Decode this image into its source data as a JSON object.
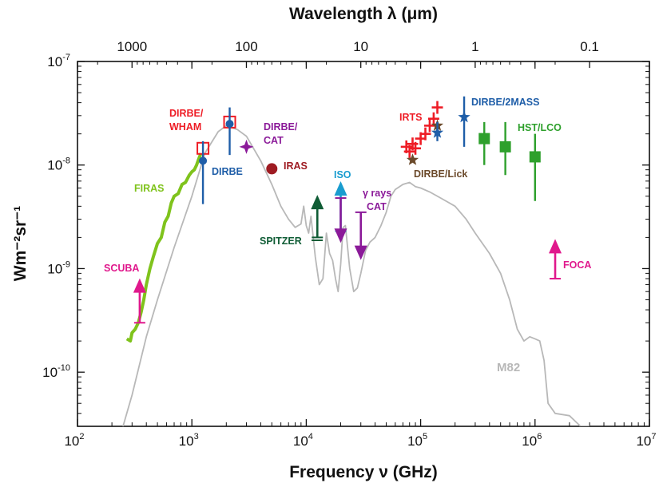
{
  "chart_data": {
    "type": "scatter",
    "title": "Wavelength λ (μm)",
    "xlabel": "Frequency ν (GHz)",
    "ylabel": "Wm⁻²sr⁻¹",
    "x_scale": "log",
    "y_scale": "log",
    "xlim": [
      100,
      10000000
    ],
    "ylim": [
      3e-11,
      1e-07
    ],
    "x_ticks": [
      {
        "label": "10",
        "exp": "2"
      },
      {
        "label": "10",
        "exp": "3"
      },
      {
        "label": "10",
        "exp": "4"
      },
      {
        "label": "10",
        "exp": "5"
      },
      {
        "label": "10",
        "exp": "6"
      },
      {
        "label": "10",
        "exp": "7"
      }
    ],
    "y_ticks": [
      {
        "label": "10",
        "exp": "-10"
      },
      {
        "label": "10",
        "exp": "-9"
      },
      {
        "label": "10",
        "exp": "-8"
      },
      {
        "label": "10",
        "exp": "-7"
      }
    ],
    "top_axis_ticks": [
      "1000",
      "100",
      "10",
      "1",
      "0.1"
    ],
    "series": [
      {
        "name": "FIRAS",
        "color": "#7fc31c",
        "kind": "line",
        "x": [
          270,
          290,
          300,
          320,
          340,
          360,
          380,
          400,
          430,
          460,
          500,
          540,
          580,
          620,
          660,
          700,
          760,
          820,
          880,
          950,
          1000,
          1050,
          1100,
          1150,
          1200
        ],
        "y": [
          2.1e-10,
          2e-10,
          2.4e-10,
          2.6e-10,
          3e-10,
          3.8e-10,
          5e-10,
          7e-10,
          1e-09,
          1.3e-09,
          1.75e-09,
          2e-09,
          2.8e-09,
          3.2e-09,
          4.3e-09,
          5e-09,
          5.3e-09,
          6.5e-09,
          6.8e-09,
          8e-09,
          8.6e-09,
          9e-09,
          1e-08,
          1.15e-08,
          1.3e-08
        ]
      },
      {
        "name": "M82",
        "color": "#b8b8b8",
        "kind": "line",
        "x": [
          250,
          300,
          400,
          500,
          700,
          1000,
          1300,
          1700,
          2000,
          2500,
          3000,
          4000,
          5000,
          6000,
          7000,
          8000,
          9000,
          9500,
          10000,
          10500,
          11000,
          12000,
          13000,
          14000,
          15000,
          16000,
          17000,
          18000,
          19000,
          20000,
          21000,
          22000,
          24000,
          26000,
          28000,
          30000,
          33000,
          36000,
          40000,
          45000,
          50000,
          55000,
          60000,
          70000,
          80000,
          90000,
          100000,
          120000,
          150000,
          200000,
          250000,
          300000,
          400000,
          500000,
          600000,
          700000,
          800000,
          900000,
          1000000,
          1100000,
          1200000,
          1300000,
          1500000,
          2000000,
          2500000,
          3000000
        ],
        "y": [
          3e-11,
          6e-11,
          2.2e-10,
          5e-10,
          1.6e-09,
          5e-09,
          1.3e-08,
          2.1e-08,
          2.4e-08,
          2.2e-08,
          1.9e-08,
          1.1e-08,
          6.5e-09,
          4e-09,
          3e-09,
          2.5e-09,
          2.7e-09,
          4e-09,
          2.6e-09,
          2.2e-09,
          3.2e-09,
          1.3e-09,
          7e-10,
          8e-10,
          2.2e-09,
          1.4e-09,
          1.2e-09,
          8e-10,
          6e-10,
          1.1e-09,
          2.5e-09,
          2.6e-09,
          1e-09,
          6e-10,
          6.5e-10,
          9e-10,
          1.5e-09,
          1.8e-09,
          2e-09,
          2.6e-09,
          3.5e-09,
          5e-09,
          5.8e-09,
          6.5e-09,
          6.8e-09,
          6.2e-09,
          6e-09,
          5.5e-09,
          4.8e-09,
          4e-09,
          3e-09,
          2.2e-09,
          1.4e-09,
          9e-10,
          5e-10,
          2.6e-10,
          2e-10,
          2.2e-10,
          2.1e-10,
          2e-10,
          1.3e-10,
          5e-11,
          4e-11,
          3.8e-11,
          3e-11,
          3e-11
        ]
      },
      {
        "name": "SCUBA",
        "color": "#e0188c",
        "kind": "arrow-up",
        "x": [
          350
        ],
        "y": [
          7.5e-10
        ],
        "ylow": 3e-10,
        "yhigh": 7.5e-10
      },
      {
        "name": "DIRBE/WHAM",
        "color": "#ee1c25",
        "kind": "square-open",
        "x": [
          1250,
          2140
        ],
        "y": [
          1.45e-08,
          2.6e-08
        ]
      },
      {
        "name": "DIRBE",
        "color": "#1f5ea8",
        "kind": "circle",
        "x": [
          1250,
          2140
        ],
        "y": [
          1.1e-08,
          2.5e-08
        ],
        "ylow": [
          4.2e-09,
          1.25e-08
        ],
        "yhigh": [
          1.7e-08,
          3.6e-08
        ]
      },
      {
        "name": "DIRBE/CAT",
        "color": "#8b1a99",
        "kind": "star4",
        "x": [
          3000
        ],
        "y": [
          1.5e-08
        ]
      },
      {
        "name": "IRAS",
        "color": "#9e1b22",
        "kind": "circle",
        "x": [
          5000
        ],
        "y": [
          9.2e-09
        ]
      },
      {
        "name": "SPITZER",
        "color": "#0f5c35",
        "kind": "arrow-up",
        "x": [
          12500
        ],
        "y": [
          4.8e-09
        ],
        "ylow": 2e-09,
        "yhigh": 4.8e-09
      },
      {
        "name": "ISO",
        "color": "#199ccf",
        "kind": "arrow-up",
        "x": [
          20000
        ],
        "y": [
          6.5e-09
        ],
        "ylow": 2.3e-09,
        "yhigh": 6.5e-09
      },
      {
        "name": "γ rays CAT",
        "color": "#8b1a99",
        "kind": "arrow-down",
        "x": [
          20000,
          30000
        ],
        "y": [
          1.9e-09,
          1.3e-09
        ],
        "yhigh": [
          4.8e-09,
          3.5e-09
        ]
      },
      {
        "name": "IRTS",
        "color": "#ee1c25",
        "kind": "plus",
        "x": [
          75000,
          80000,
          85000,
          90000,
          100000,
          110000,
          120000,
          130000,
          140000
        ],
        "y": [
          1.5e-08,
          1.35e-08,
          1.6e-08,
          1.45e-08,
          1.8e-08,
          2e-08,
          2.4e-08,
          2.8e-08,
          3.6e-08
        ]
      },
      {
        "name": "DIRBE/Lick",
        "color": "#6b4a2b",
        "kind": "star5",
        "x": [
          85000,
          140000
        ],
        "y": [
          1.12e-08,
          2.4e-08
        ]
      },
      {
        "name": "DIRBE/2MASS",
        "color": "#1f5ea8",
        "kind": "star5",
        "x": [
          140000,
          240000
        ],
        "y": [
          2.05e-08,
          2.9e-08
        ],
        "ylow": [
          1.7e-08,
          1.5e-08
        ],
        "yhigh": [
          2.6e-08,
          4.6e-08
        ]
      },
      {
        "name": "HST/LCO",
        "color": "#2ea02c",
        "kind": "square",
        "x": [
          360000,
          550000,
          1000000
        ],
        "y": [
          1.8e-08,
          1.5e-08,
          1.2e-08
        ],
        "ylow": [
          1e-08,
          8e-09,
          4.5e-09
        ],
        "yhigh": [
          2.6e-08,
          2.6e-08,
          2e-08
        ]
      },
      {
        "name": "FOCA",
        "color": "#e0188c",
        "kind": "arrow-up",
        "x": [
          1500000
        ],
        "y": [
          1.8e-09
        ],
        "ylow": 8e-10,
        "yhigh": 2.7e-09
      }
    ],
    "annotations": [
      {
        "text": "FIRAS",
        "color": "#7fc31c"
      },
      {
        "text": "SCUBA",
        "color": "#e0188c"
      },
      {
        "text": "DIRBE/",
        "color": "#ee1c25"
      },
      {
        "text": "WHAM",
        "color": "#ee1c25"
      },
      {
        "text": "DIRBE",
        "color": "#1f5ea8"
      },
      {
        "text": "DIRBE/",
        "color": "#8b1a99"
      },
      {
        "text": "CAT",
        "color": "#8b1a99"
      },
      {
        "text": "IRAS",
        "color": "#9e1b22"
      },
      {
        "text": "ISO",
        "color": "#199ccf"
      },
      {
        "text": "SPITZER",
        "color": "#0f5c35"
      },
      {
        "text": "γ rays",
        "color": "#8b1a99"
      },
      {
        "text": "CAT",
        "color": "#8b1a99"
      },
      {
        "text": "IRTS",
        "color": "#ee1c25"
      },
      {
        "text": "DIRBE/2MASS",
        "color": "#1f5ea8"
      },
      {
        "text": "HST/LCO",
        "color": "#2ea02c"
      },
      {
        "text": "DIRBE/Lick",
        "color": "#6b4a2b"
      },
      {
        "text": "M82",
        "color": "#b8b8b8"
      },
      {
        "text": "FOCA",
        "color": "#e0188c"
      }
    ]
  }
}
